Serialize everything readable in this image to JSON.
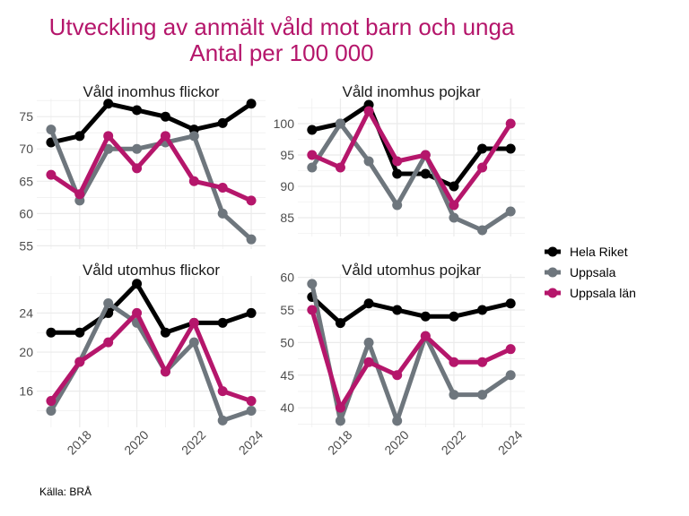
{
  "chart_data": {
    "type": "line",
    "title": "Utveckling av anmält våld mot barn och unga",
    "subtitle": "Antal per 100 000",
    "caption": "Källa: BRÅ",
    "x": [
      2017,
      2018,
      2019,
      2020,
      2021,
      2022,
      2023,
      2024
    ],
    "x_tick_labels": [
      "2018",
      "2020",
      "2022",
      "2024"
    ],
    "legend": {
      "placement": "right",
      "entries": [
        "Hela Riket",
        "Uppsala",
        "Uppsala län"
      ]
    },
    "colors": {
      "Hela Riket": "#000000",
      "Uppsala": "#6e767d",
      "Uppsala län": "#b5166b"
    },
    "title_color": "#b5166b",
    "panels": [
      {
        "title": "Våld inomhus flickor",
        "ylim": [
          54.5,
          77.8
        ],
        "yticks": [
          55,
          60,
          65,
          70,
          75
        ],
        "series": [
          {
            "name": "Hela Riket",
            "values": [
              71,
              72,
              77,
              76,
              75,
              73,
              74,
              77
            ]
          },
          {
            "name": "Uppsala",
            "values": [
              73,
              62,
              70,
              70,
              71,
              72,
              60,
              56
            ]
          },
          {
            "name": "Uppsala län",
            "values": [
              66,
              63,
              72,
              67,
              72,
              65,
              64,
              62
            ]
          }
        ]
      },
      {
        "title": "Våld inomhus pojkar",
        "ylim": [
          82,
          104
        ],
        "yticks": [
          85,
          90,
          95,
          100
        ],
        "series": [
          {
            "name": "Hela Riket",
            "values": [
              99,
              100,
              103,
              92,
              92,
              90,
              96,
              96
            ]
          },
          {
            "name": "Uppsala",
            "values": [
              93,
              100,
              94,
              87,
              95,
              85,
              83,
              86
            ]
          },
          {
            "name": "Uppsala län",
            "values": [
              95,
              93,
              102,
              94,
              95,
              87,
              93,
              100
            ]
          }
        ]
      },
      {
        "title": "Våld utomhus flickor",
        "ylim": [
          12.3,
          27.8
        ],
        "yticks": [
          16,
          20,
          24
        ],
        "series": [
          {
            "name": "Hela Riket",
            "values": [
              22,
              22,
              24,
              27,
              22,
              23,
              23,
              24
            ]
          },
          {
            "name": "Uppsala",
            "values": [
              14,
              19,
              25,
              23,
              18,
              21,
              13,
              14
            ]
          },
          {
            "name": "Uppsala län",
            "values": [
              15,
              19,
              21,
              24,
              18,
              23,
              16,
              15
            ]
          }
        ]
      },
      {
        "title": "Våld utomhus pojkar",
        "ylim": [
          37,
          60.5
        ],
        "yticks": [
          40,
          45,
          50,
          55,
          60
        ],
        "series": [
          {
            "name": "Hela Riket",
            "values": [
              57,
              53,
              56,
              55,
              54,
              54,
              55,
              56
            ]
          },
          {
            "name": "Uppsala",
            "values": [
              59,
              38,
              50,
              38,
              51,
              42,
              42,
              45
            ]
          },
          {
            "name": "Uppsala län",
            "values": [
              55,
              40,
              47,
              45,
              51,
              47,
              47,
              49
            ]
          }
        ]
      }
    ]
  }
}
